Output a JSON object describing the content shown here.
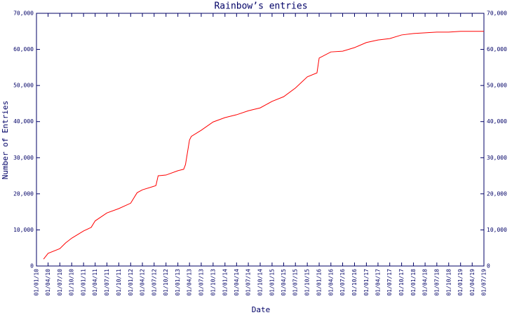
{
  "chart_data": {
    "type": "line",
    "title": "Rainbow’s entries",
    "x_label": "Date",
    "y_label": "Number of Entries",
    "x": [
      "25/02/10",
      "01/04/10",
      "01/07/10",
      "15/08/10",
      "01/10/10",
      "01/01/11",
      "01/03/11",
      "01/04/11",
      "01/07/11",
      "01/10/11",
      "01/01/12",
      "20/02/12",
      "01/04/12",
      "01/07/12",
      "15/07/12",
      "01/08/12",
      "01/10/12",
      "01/01/13",
      "15/02/13",
      "01/03/13",
      "01/04/13",
      "15/04/13",
      "01/07/13",
      "01/10/13",
      "01/01/14",
      "01/04/14",
      "01/07/14",
      "01/10/14",
      "01/01/15",
      "01/04/15",
      "01/07/15",
      "01/10/15",
      "15/12/15",
      "01/01/16",
      "01/04/16",
      "01/07/16",
      "01/10/16",
      "01/01/17",
      "01/04/17",
      "01/07/17",
      "01/10/17",
      "01/01/18",
      "01/04/18",
      "01/07/18",
      "01/10/18",
      "01/01/19",
      "01/04/19",
      "01/07/19"
    ],
    "series": [
      {
        "name": "entries",
        "color": "#ff0000",
        "values": [
          1900,
          3500,
          4800,
          6400,
          7700,
          9700,
          10700,
          12500,
          14700,
          15900,
          17400,
          20300,
          21100,
          22100,
          22300,
          25000,
          25200,
          26400,
          26800,
          28100,
          34900,
          35900,
          37600,
          39900,
          41100,
          41900,
          43000,
          43800,
          45600,
          46900,
          49300,
          52400,
          53500,
          57600,
          59300,
          59500,
          60500,
          61900,
          62600,
          63000,
          64000,
          64400,
          64600,
          64800,
          64800,
          65000,
          65000,
          65000
        ]
      }
    ],
    "xlim": [
      "01/01/10",
      "01/07/19"
    ],
    "xticks": [
      "01/01/10",
      "01/04/10",
      "01/07/10",
      "01/10/10",
      "01/01/11",
      "01/04/11",
      "01/07/11",
      "01/10/11",
      "01/01/12",
      "01/04/12",
      "01/07/12",
      "01/10/12",
      "01/01/13",
      "01/04/13",
      "01/07/13",
      "01/10/13",
      "01/01/14",
      "01/04/14",
      "01/07/14",
      "01/10/14",
      "01/01/15",
      "01/04/15",
      "01/07/15",
      "01/10/15",
      "01/01/16",
      "01/04/16",
      "01/07/16",
      "01/10/16",
      "01/01/17",
      "01/04/17",
      "01/07/17",
      "01/10/17",
      "01/01/18",
      "01/04/18",
      "01/07/18",
      "01/10/18",
      "01/01/19",
      "01/04/19",
      "01/07/19"
    ],
    "ylim": [
      0,
      70000
    ],
    "yticks": [
      0,
      {
        "value": 10000,
        "label": "10,000"
      },
      {
        "value": 20000,
        "label": "20,000"
      },
      {
        "value": 30000,
        "label": "30,000"
      },
      {
        "value": 40000,
        "label": "40,000"
      },
      {
        "value": 50000,
        "label": "50,000"
      },
      {
        "value": 60000,
        "label": "60,000"
      },
      {
        "value": 70000,
        "label": "70,000"
      }
    ],
    "y2lim": [
      0,
      70000
    ],
    "y2ticks": [
      0,
      {
        "value": 10000,
        "label": "10,000"
      },
      {
        "value": 20000,
        "label": "20,000"
      },
      {
        "value": 30000,
        "label": "30,000"
      },
      {
        "value": 40000,
        "label": "40,000"
      },
      {
        "value": 50000,
        "label": "50,000"
      },
      {
        "value": 60000,
        "label": "60,000"
      },
      {
        "value": 70000,
        "label": "70,000"
      }
    ]
  }
}
